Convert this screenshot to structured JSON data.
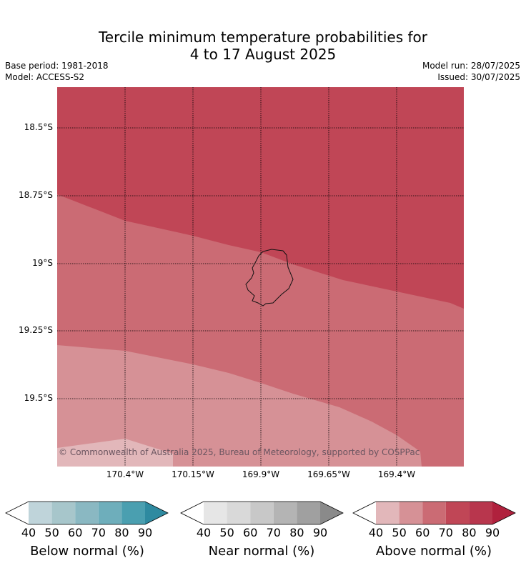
{
  "title": {
    "line1": "Tercile minimum temperature probabilities for",
    "line2": "4 to 17 August 2025"
  },
  "meta": {
    "base_period": "Base period: 1981-2018",
    "model": "Model: ACCESS-S2",
    "model_run": "Model run: 28/07/2025",
    "issued": "Issued: 30/07/2025"
  },
  "map": {
    "lat_labels": [
      "18.5°S",
      "18.75°S",
      "19°S",
      "19.25°S",
      "19.5°S"
    ],
    "lon_labels": [
      "170.4°W",
      "170.15°W",
      "169.9°W",
      "169.65°W",
      "169.4°W"
    ],
    "copyright": "© Commonwealth of Australia 2025, Bureau of Meteorology, supported by COSPPac",
    "zone_colors": {
      "above_80_90": "#c04656",
      "above_70_80": "#cb6b74",
      "above_60_70": "#d69196",
      "above_50_60": "#e2b7ba"
    }
  },
  "colorbars": [
    {
      "name": "below",
      "title": "Below normal (%)",
      "ticks": [
        "40",
        "50",
        "60",
        "70",
        "80",
        "90"
      ],
      "colors": [
        "#ffffff",
        "#bfd4da",
        "#a7c6cb",
        "#8ab8c2",
        "#6eaebb",
        "#4a9fb0",
        "#2e8aa0"
      ]
    },
    {
      "name": "near",
      "title": "Near normal (%)",
      "ticks": [
        "40",
        "50",
        "60",
        "70",
        "80",
        "90"
      ],
      "colors": [
        "#ffffff",
        "#e6e6e6",
        "#d9d9d9",
        "#c8c8c8",
        "#b4b4b4",
        "#a0a0a0",
        "#8a8a8a"
      ]
    },
    {
      "name": "above",
      "title": "Above normal (%)",
      "ticks": [
        "40",
        "50",
        "60",
        "70",
        "80",
        "90"
      ],
      "colors": [
        "#ffffff",
        "#e2b7ba",
        "#d69196",
        "#cb6b74",
        "#c04656",
        "#b8364d",
        "#b0213d"
      ]
    }
  ]
}
